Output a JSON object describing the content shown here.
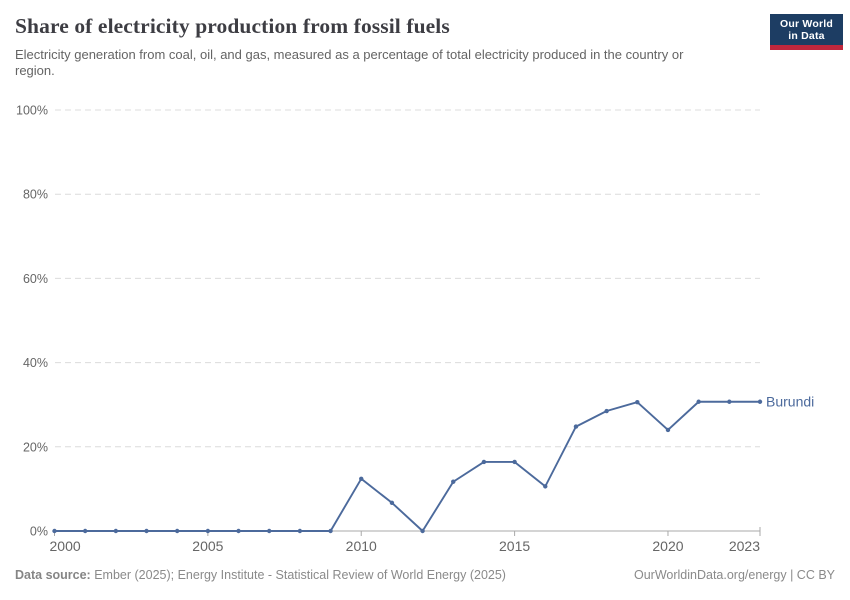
{
  "header": {
    "title": "Share of electricity production from fossil fuels",
    "subtitle": "Electricity generation from coal, oil, and gas, measured as a percentage of total electricity produced in the country or region."
  },
  "logo": {
    "line1": "Our World",
    "line2": "in Data",
    "bg_color": "#1d3d63",
    "accent_color": "#c0273d",
    "text_color": "#ffffff"
  },
  "chart_data": {
    "type": "line",
    "title": "Share of electricity production from fossil fuels",
    "subtitle": "Electricity generation from coal, oil, and gas, measured as a percentage of total electricity produced in the country or region.",
    "x": [
      2000,
      2001,
      2002,
      2003,
      2004,
      2005,
      2006,
      2007,
      2008,
      2009,
      2010,
      2011,
      2012,
      2013,
      2014,
      2015,
      2016,
      2017,
      2018,
      2019,
      2020,
      2021,
      2022,
      2023
    ],
    "series": [
      {
        "name": "Burundi",
        "color": "#4C6A9C",
        "values": [
          0,
          0,
          0,
          0,
          0,
          0,
          0,
          0,
          0,
          0,
          12.4,
          6.7,
          0,
          11.7,
          16.4,
          16.4,
          10.6,
          24.8,
          28.5,
          30.6,
          24,
          30.7,
          30.7,
          30.7
        ]
      }
    ],
    "xlabel": "",
    "ylabel": "",
    "xlim": [
      2000,
      2023
    ],
    "ylim": [
      0,
      100
    ],
    "ytick_values": [
      0,
      20,
      40,
      60,
      80,
      100
    ],
    "ytick_labels": [
      "0%",
      "20%",
      "40%",
      "60%",
      "80%",
      "100%"
    ],
    "xtick_values": [
      2000,
      2005,
      2010,
      2015,
      2020,
      2023
    ],
    "grid": "horizontal-dashed",
    "grid_color": "#dcdcdc",
    "axis_color": "#a9a9a9",
    "tick_label_color": "#666666",
    "legend": "entity-label-at-line-end"
  },
  "footer": {
    "source_label": "Data source:",
    "source_rest": " Ember (2025); Energy Institute - Statistical Review of World Energy (2025)",
    "credit": "OurWorldinData.org/energy | CC BY"
  }
}
